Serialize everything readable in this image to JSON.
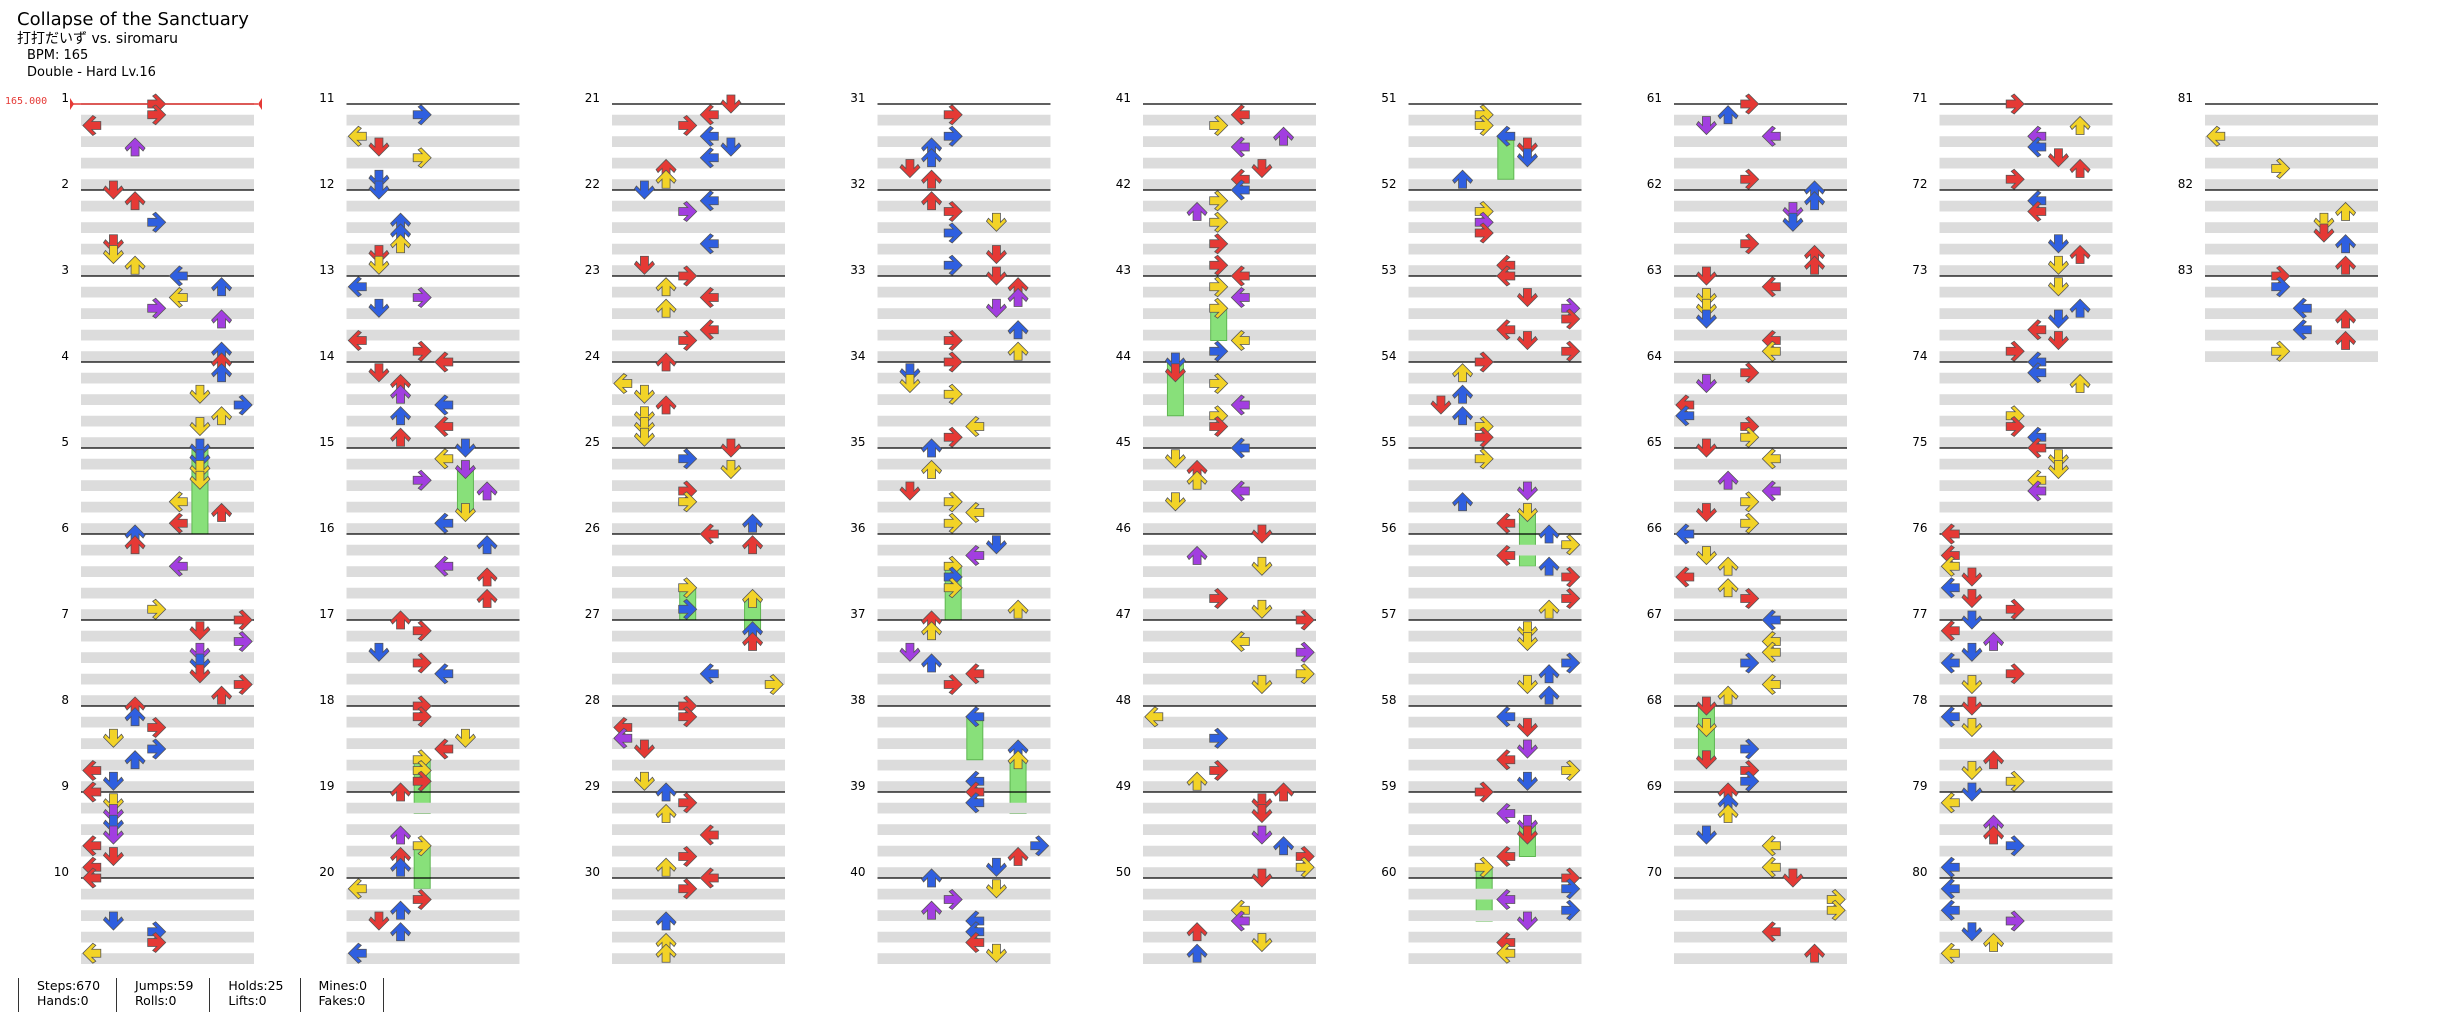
{
  "song": {
    "title": "Collapse of the Sanctuary",
    "artist": "打打だいず vs. siromaru",
    "bpm_text": "BPM: 165",
    "difficulty_text": "Double - Hard  Lv.16"
  },
  "timing": {
    "bpm_marker": "165.000",
    "marker_color": "#e53935"
  },
  "chart": {
    "measure_labels": [
      "1",
      "2",
      "3",
      "4",
      "5",
      "6",
      "7",
      "8",
      "9",
      "10",
      "11",
      "12",
      "13",
      "14",
      "15",
      "16",
      "17",
      "18",
      "19",
      "20",
      "21",
      "22",
      "23",
      "24",
      "25",
      "26",
      "27",
      "28",
      "29",
      "30",
      "31",
      "32",
      "33",
      "34",
      "35",
      "36",
      "37",
      "38",
      "39",
      "40",
      "41",
      "42",
      "43",
      "44",
      "45",
      "46",
      "47",
      "48",
      "49",
      "50",
      "51",
      "52",
      "53",
      "54",
      "55",
      "56",
      "57",
      "58",
      "59",
      "60",
      "61",
      "62",
      "63",
      "64",
      "65",
      "66",
      "67",
      "68",
      "69",
      "70",
      "71",
      "72",
      "73",
      "74",
      "75",
      "76",
      "77",
      "78",
      "79",
      "80",
      "81",
      "82",
      "83"
    ],
    "total_measures": 83,
    "columns": 9,
    "measures_per_column": 10,
    "panels": 8,
    "colors": {
      "quarter": "#e53935",
      "eighth": "#2f5fe0",
      "twelfth": "#a23ee0",
      "sixteenth": "#f2d327",
      "hold_body": "#88e07a",
      "hold_stripe": "#5fb652",
      "lane_band": "#dcdcdc",
      "measure_line": "#000000"
    },
    "icons": [
      "arrow-left-icon",
      "arrow-down-icon",
      "arrow-up-icon",
      "arrow-right-icon",
      "hold-body-icon"
    ]
  },
  "stats": {
    "steps": "Steps:670",
    "hands": "Hands:0",
    "jumps": "Jumps:59",
    "rolls": "Rolls:0",
    "holds": "Holds:25",
    "lifts": "Lifts:0",
    "mines": "Mines:0",
    "fakes": "Fakes:0"
  }
}
